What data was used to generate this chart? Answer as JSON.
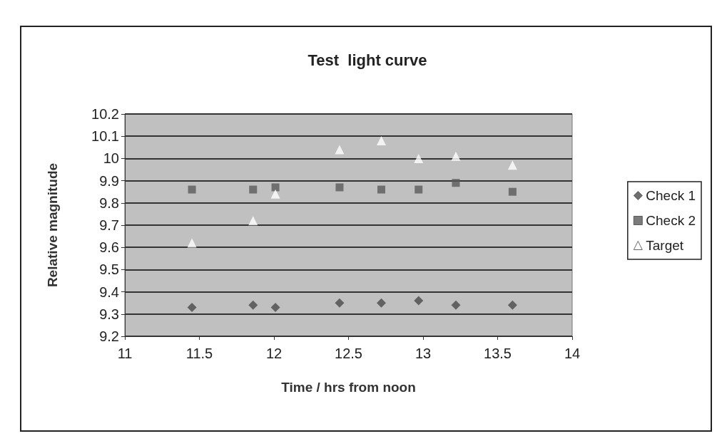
{
  "chart_data": {
    "type": "scatter",
    "title": "Test  light curve",
    "xlabel": "Time / hrs from noon",
    "ylabel": "Relative magnitude",
    "x": [
      11.45,
      11.86,
      12.01,
      12.44,
      12.72,
      12.97,
      13.22,
      13.6
    ],
    "series": [
      {
        "name": "Check 1",
        "color": "#4a4a4a",
        "marker": "diamond",
        "values": [
          9.33,
          9.34,
          9.33,
          9.35,
          9.35,
          9.36,
          9.34,
          9.34
        ]
      },
      {
        "name": "Check 2",
        "color": "#5a5a5a",
        "marker": "square",
        "values": [
          9.86,
          9.86,
          9.87,
          9.87,
          9.86,
          9.86,
          9.89,
          9.85
        ]
      },
      {
        "name": "Target",
        "color": "#ffffff",
        "marker": "triangle",
        "values": [
          9.62,
          9.72,
          9.84,
          10.04,
          10.08,
          10.0,
          10.01,
          9.97
        ]
      }
    ],
    "xlim": [
      11,
      14
    ],
    "xticks": [
      11,
      11.5,
      12,
      12.5,
      13,
      13.5,
      14
    ],
    "ylim": [
      9.2,
      10.2
    ],
    "yticks": [
      9.2,
      9.3,
      9.4,
      9.5,
      9.6,
      9.7,
      9.8,
      9.9,
      10,
      10.1,
      10.2
    ],
    "grid": "y",
    "legend": "right"
  }
}
